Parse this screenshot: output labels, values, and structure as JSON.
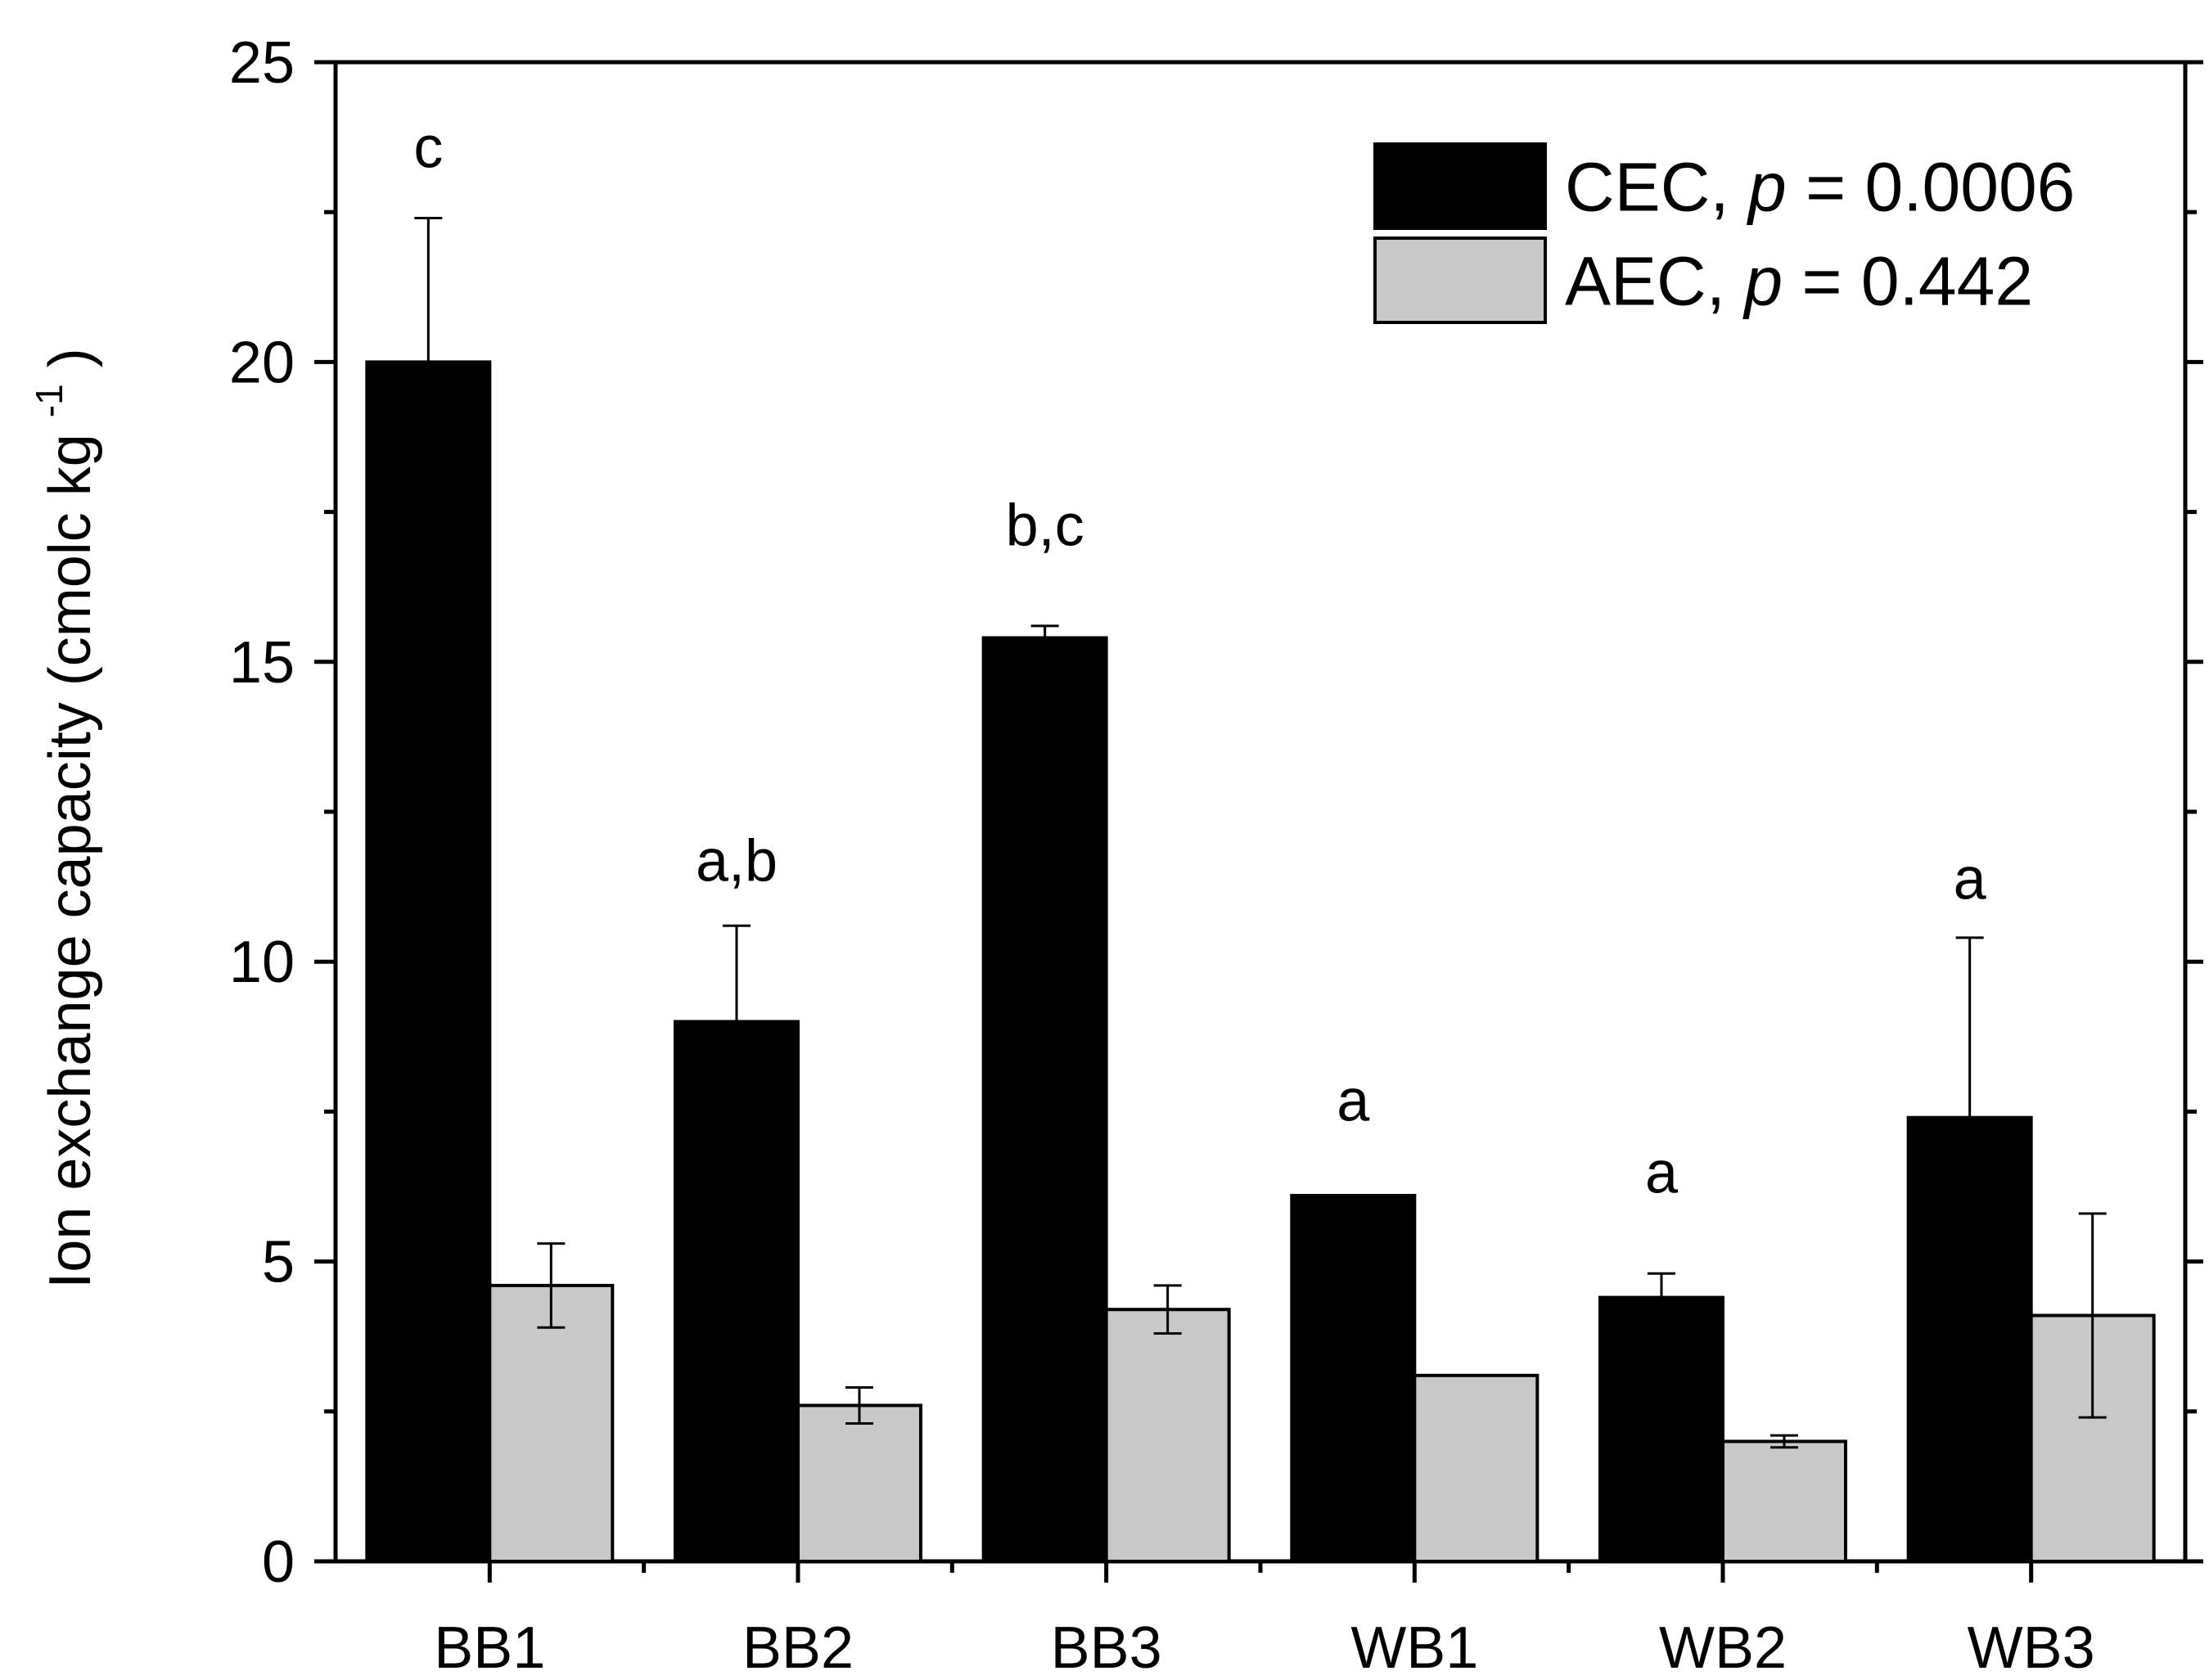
{
  "chart_data": {
    "type": "bar",
    "title": "",
    "xlabel": "",
    "ylabel": "Ion exchange capacity (cmolc kg",
    "ylabel_superscript": "-1",
    "ylabel_close": ")",
    "ylim": [
      0,
      25
    ],
    "yticks": [
      0,
      5,
      10,
      15,
      20,
      25
    ],
    "ytick_labels": [
      "0",
      "5",
      "10",
      "15",
      "20",
      "25"
    ],
    "categories": [
      "BB1",
      "BB2",
      "BB3",
      "WB1",
      "WB2",
      "WB3"
    ],
    "series": [
      {
        "name": "CEC",
        "legend_prefix": "CEC, ",
        "legend_p": "p",
        "legend_value": " = 0.0006",
        "color": "#000000",
        "values": [
          20.0,
          9.0,
          15.4,
          6.1,
          4.4,
          7.4
        ],
        "errors": [
          2.4,
          1.6,
          0.2,
          0,
          0.4,
          3.0
        ],
        "significance": [
          "c",
          "a,b",
          "b,c",
          "a",
          "a",
          "a"
        ],
        "significance_y": [
          23.6,
          11.7,
          17.3,
          7.7,
          6.5,
          11.4
        ]
      },
      {
        "name": "AEC",
        "legend_prefix": "AEC, ",
        "legend_p": "p",
        "legend_value": " = 0.442",
        "color": "#c8c8c8",
        "values": [
          4.6,
          2.6,
          4.2,
          3.1,
          2.0,
          4.1
        ],
        "errors": [
          0.7,
          0.3,
          0.4,
          0,
          0.1,
          1.7
        ]
      }
    ],
    "legend_position": "top-right",
    "grid": false
  }
}
